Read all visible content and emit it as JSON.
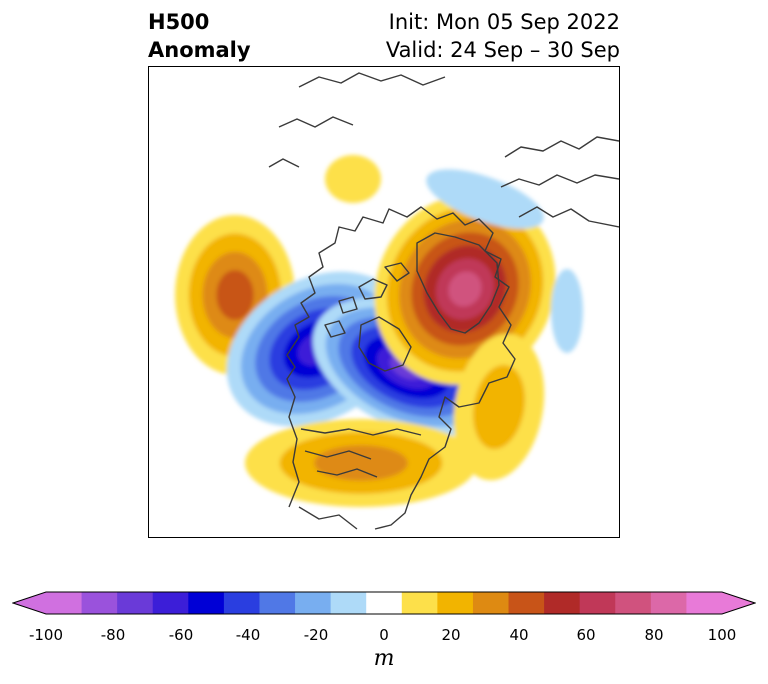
{
  "title": {
    "left_line1": "H500",
    "left_line2": "Anomaly",
    "right_line1": "Init: Mon 05 Sep 2022",
    "right_line2": "Valid: 24 Sep – 30 Sep"
  },
  "colorbar": {
    "unit": "m",
    "tick_labels": [
      "-100",
      "-80",
      "-60",
      "-40",
      "-20",
      "0",
      "20",
      "40",
      "60",
      "80",
      "100"
    ],
    "levels": [
      -100,
      -90,
      -80,
      -70,
      -60,
      -50,
      -40,
      -30,
      -20,
      -10,
      10,
      20,
      30,
      40,
      50,
      60,
      70,
      80,
      90,
      100
    ],
    "colors": [
      "#d070e0",
      "#9a52dc",
      "#6a3ad8",
      "#3c1ed8",
      "#0000d6",
      "#2a3ee0",
      "#5078e6",
      "#78aef0",
      "#aedaf8",
      "#ffffff",
      "#fde04a",
      "#f2b400",
      "#de8a12",
      "#c85418",
      "#b02a28",
      "#c03858",
      "#d0527e",
      "#dc68a8",
      "#e87ad8"
    ],
    "extend_low_color": "#d070e0",
    "extend_high_color": "#e87ad8"
  },
  "map": {
    "projection": "north-polar-stereographic",
    "anomalies": [
      {
        "region": "north-pacific-ridge",
        "peak_m": 45
      },
      {
        "region": "gulf-of-alaska-trough",
        "peak_m": -65
      },
      {
        "region": "hudson-bay-trough",
        "peak_m": -75
      },
      {
        "region": "greenland-ridge",
        "peak_m": 75
      },
      {
        "region": "contiguous-us-ridge",
        "peak_m": 35
      },
      {
        "region": "northwest-atlantic-ridge",
        "peak_m": 25
      },
      {
        "region": "siberia-weak-ridge",
        "peak_m": 15
      },
      {
        "region": "arctic-weak-trough",
        "peak_m": -15
      },
      {
        "region": "north-atlantic-weak-trough",
        "peak_m": -15
      }
    ]
  }
}
